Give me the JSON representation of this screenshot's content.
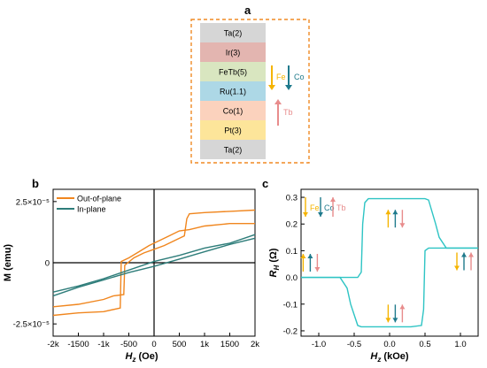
{
  "panel_a": {
    "letter": "a",
    "layers": [
      {
        "name": "Ta(2)",
        "color": "#d6d6d6"
      },
      {
        "name": "Ir(3)",
        "color": "#e3b5b0"
      },
      {
        "name": "FeTb(5)",
        "color": "#d9e6c0"
      },
      {
        "name": "Ru(1.1)",
        "color": "#add8e6"
      },
      {
        "name": "Co(1)",
        "color": "#fbd2bd"
      },
      {
        "name": "Pt(3)",
        "color": "#fde59a"
      },
      {
        "name": "Ta(2)",
        "color": "#d6d6d6"
      }
    ],
    "arrows": {
      "fe": "Fe",
      "co": "Co",
      "tb": "Tb"
    },
    "colors": {
      "fe": "#f5b400",
      "co": "#1f7a8c",
      "tb": "#e88c8c",
      "frame": "#f08a24"
    }
  },
  "chart_data": [
    {
      "panel": "b",
      "type": "line",
      "xlabel_main": "H",
      "xlabel_sub": "z",
      "xlabel_unit": " (Oe)",
      "ylabel": "M (emu)",
      "xlim": [
        -2000,
        2000
      ],
      "ylim": [
        -3e-05,
        3e-05
      ],
      "xticks": [
        -2000,
        -1500,
        -1000,
        -500,
        0,
        500,
        1000,
        1500,
        2000
      ],
      "xtick_labels": [
        "-2k",
        "-1500",
        "-1k",
        "-500",
        "0",
        "500",
        "1k",
        "1500",
        "2k"
      ],
      "yticks": [
        2.5e-05,
        0,
        -2.5e-05
      ],
      "ytick_labels": [
        "2.5×10⁻⁵",
        "0",
        "-2.5×10⁻⁵"
      ],
      "legend_position": "top-left",
      "series": [
        {
          "name": "Out-of-plane",
          "color": "#f0861e",
          "branches": [
            {
              "x": [
                -2000,
                -1500,
                -1000,
                -800,
                -600,
                -580,
                -400,
                -200,
                0,
                200,
                400,
                600,
                650,
                700,
                1000,
                1500,
                2000
              ],
              "y": [
                -1.8e-05,
                -1.7e-05,
                -1.5e-05,
                -1.35e-05,
                -1.3e-05,
                -1e-06,
                2e-06,
                4e-06,
                5.5e-06,
                7e-06,
                9e-06,
                1.1e-05,
                1.8e-05,
                2e-05,
                2.05e-05,
                2.1e-05,
                2.15e-05
              ]
            },
            {
              "x": [
                2000,
                1500,
                1000,
                700,
                500,
                300,
                100,
                -100,
                -300,
                -500,
                -650,
                -670,
                -1000,
                -1500,
                -2000
              ],
              "y": [
                1.6e-05,
                1.6e-05,
                1.5e-05,
                1.35e-05,
                1.3e-05,
                1.1e-05,
                9e-06,
                7e-06,
                4.5e-06,
                2e-06,
                5e-07,
                -1.85e-05,
                -2e-05,
                -2.05e-05,
                -2.15e-05
              ]
            }
          ]
        },
        {
          "name": "In-plane",
          "color": "#2e7d7a",
          "branches": [
            {
              "x": [
                -2000,
                -1500,
                -1000,
                -500,
                0,
                500,
                1000,
                1500,
                2000
              ],
              "y": [
                -1.2e-05,
                -9.5e-06,
                -6.5e-06,
                -3e-06,
                5e-07,
                3e-06,
                6e-06,
                8e-06,
                1.15e-05
              ]
            },
            {
              "x": [
                2000,
                1500,
                1000,
                500,
                0,
                -500,
                -1000,
                -1500,
                -2000
              ],
              "y": [
                1e-05,
                7.5e-06,
                4.5e-06,
                1.5e-06,
                -1.5e-06,
                -4e-06,
                -7e-06,
                -1e-05,
                -1.35e-05
              ]
            }
          ]
        }
      ]
    },
    {
      "panel": "c",
      "type": "line",
      "xlabel_main": "H",
      "xlabel_sub": "z",
      "xlabel_unit": " (kOe)",
      "ylabel_main": "R",
      "ylabel_sub": "H",
      "ylabel_unit": " (Ω)",
      "xlim": [
        -1.25,
        1.25
      ],
      "ylim": [
        -0.22,
        0.33
      ],
      "xticks": [
        -1.0,
        -0.5,
        0.0,
        0.5,
        1.0
      ],
      "xtick_labels": [
        "-1.0",
        "-0.5",
        "0.0",
        "0.5",
        "1.0"
      ],
      "yticks": [
        0.3,
        0.2,
        0.1,
        0.0,
        -0.1,
        -0.2
      ],
      "ytick_labels": [
        "0.3",
        "0.2",
        "0.1",
        "0.0",
        "-0.1",
        "-0.2"
      ],
      "series": [
        {
          "color": "#2ec4c4",
          "branches": [
            {
              "x": [
                -1.25,
                -0.7,
                -0.6,
                -0.55,
                -0.45,
                -0.4,
                -0.3,
                0,
                0.3,
                0.45,
                0.48,
                0.5,
                0.55,
                1.25
              ],
              "y": [
                0.0,
                0.0,
                -0.04,
                -0.1,
                -0.18,
                -0.185,
                -0.185,
                -0.185,
                -0.185,
                -0.18,
                -0.12,
                0.1,
                0.11,
                0.11
              ]
            },
            {
              "x": [
                1.25,
                0.8,
                0.7,
                0.65,
                0.55,
                0.5,
                0.3,
                0,
                -0.3,
                -0.35,
                -0.38,
                -0.4,
                -0.45,
                -1.25
              ],
              "y": [
                0.11,
                0.11,
                0.15,
                0.2,
                0.29,
                0.295,
                0.295,
                0.295,
                0.295,
                0.28,
                0.2,
                0.02,
                0.0,
                0.0
              ]
            }
          ]
        }
      ],
      "legend_labels": {
        "fe": "Fe",
        "co": "Co",
        "tb": "Tb"
      }
    }
  ]
}
